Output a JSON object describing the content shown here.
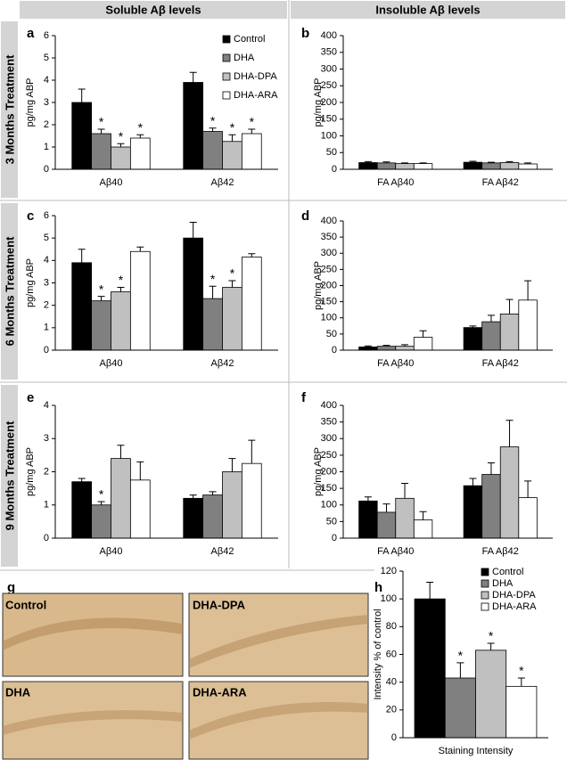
{
  "headers": [
    "Soluble Aβ levels",
    "Insoluble Aβ levels"
  ],
  "row_labels": [
    "3 Months Treatment",
    "6 Months Treatment",
    "9 Months Treatment"
  ],
  "figure_g": {
    "panel": "g",
    "images": [
      "Control",
      "DHA-DPA",
      "DHA",
      "DHA-ARA"
    ]
  },
  "chart_data": [
    {
      "type": "bar",
      "panel": "a",
      "ylabel": "pg/mg ABP",
      "categories": [
        "Aβ40",
        "Aβ42"
      ],
      "ylim": [
        0,
        6
      ],
      "yticks": [
        0,
        1,
        2,
        3,
        4,
        5,
        6
      ],
      "legend": "upper right",
      "series": [
        {
          "name": "Control",
          "color": "#000000",
          "values": [
            3.0,
            3.9
          ],
          "error": [
            0.6,
            0.45
          ]
        },
        {
          "name": "DHA",
          "color": "#808080",
          "values": [
            1.6,
            1.7
          ],
          "error": [
            0.2,
            0.15
          ],
          "significance": [
            "*",
            "*"
          ]
        },
        {
          "name": "DHA-DPA",
          "color": "#c0c0c0",
          "values": [
            1.0,
            1.25
          ],
          "error": [
            0.15,
            0.3
          ],
          "significance": [
            "*",
            "*"
          ]
        },
        {
          "name": "DHA-ARA",
          "color": "#ffffff",
          "values": [
            1.4,
            1.6
          ],
          "error": [
            0.15,
            0.2
          ],
          "significance": [
            "*",
            "*"
          ]
        }
      ]
    },
    {
      "type": "bar",
      "panel": "b",
      "ylabel": "pg/mg ABP",
      "categories": [
        "FA Aβ40",
        "FA Aβ42"
      ],
      "ylim": [
        0,
        400
      ],
      "yticks": [
        0,
        50,
        100,
        150,
        200,
        250,
        300,
        350,
        400
      ],
      "series": [
        {
          "color": "#000000",
          "values": [
            20,
            21
          ],
          "error": [
            3,
            3
          ]
        },
        {
          "color": "#808080",
          "values": [
            19,
            19
          ],
          "error": [
            3,
            2
          ]
        },
        {
          "color": "#c0c0c0",
          "values": [
            17,
            20
          ],
          "error": [
            2,
            3
          ]
        },
        {
          "color": "#ffffff",
          "values": [
            17,
            16
          ],
          "error": [
            2,
            3
          ]
        }
      ]
    },
    {
      "type": "bar",
      "panel": "c",
      "ylabel": "pg/mg ABP",
      "categories": [
        "Aβ40",
        "Aβ42"
      ],
      "ylim": [
        0,
        6
      ],
      "yticks": [
        0,
        1,
        2,
        3,
        4,
        5,
        6
      ],
      "series": [
        {
          "color": "#000000",
          "values": [
            3.9,
            5.0
          ],
          "error": [
            0.6,
            0.7
          ]
        },
        {
          "color": "#808080",
          "values": [
            2.2,
            2.3
          ],
          "error": [
            0.2,
            0.55
          ],
          "significance": [
            "*",
            "*"
          ]
        },
        {
          "color": "#c0c0c0",
          "values": [
            2.6,
            2.8
          ],
          "error": [
            0.2,
            0.3
          ],
          "significance": [
            "*",
            "*"
          ]
        },
        {
          "color": "#ffffff",
          "values": [
            4.4,
            4.15
          ],
          "error": [
            0.2,
            0.15
          ]
        }
      ]
    },
    {
      "type": "bar",
      "panel": "d",
      "ylabel": "pg/mg ABP",
      "categories": [
        "FA Aβ40",
        "FA Aβ42"
      ],
      "ylim": [
        0,
        400
      ],
      "yticks": [
        0,
        50,
        100,
        150,
        200,
        250,
        300,
        350,
        400
      ],
      "series": [
        {
          "color": "#000000",
          "values": [
            10,
            70
          ],
          "error": [
            3,
            5
          ]
        },
        {
          "color": "#808080",
          "values": [
            12,
            88
          ],
          "error": [
            3,
            20
          ]
        },
        {
          "color": "#c0c0c0",
          "values": [
            12,
            112
          ],
          "error": [
            5,
            45
          ]
        },
        {
          "color": "#ffffff",
          "values": [
            40,
            155
          ],
          "error": [
            20,
            60
          ]
        }
      ]
    },
    {
      "type": "bar",
      "panel": "e",
      "ylabel": "pg/mg ABP",
      "categories": [
        "Aβ40",
        "Aβ42"
      ],
      "ylim": [
        0,
        4
      ],
      "yticks": [
        0,
        1,
        2,
        3,
        4
      ],
      "series": [
        {
          "color": "#000000",
          "values": [
            1.7,
            1.2
          ],
          "error": [
            0.1,
            0.1
          ]
        },
        {
          "color": "#808080",
          "values": [
            1.0,
            1.3
          ],
          "error": [
            0.1,
            0.1
          ],
          "significance": [
            "*",
            null
          ]
        },
        {
          "color": "#c0c0c0",
          "values": [
            2.4,
            2.0
          ],
          "error": [
            0.4,
            0.4
          ]
        },
        {
          "color": "#ffffff",
          "values": [
            1.75,
            2.25
          ],
          "error": [
            0.55,
            0.7
          ]
        }
      ]
    },
    {
      "type": "bar",
      "panel": "f",
      "ylabel": "pg/mg ABP",
      "categories": [
        "FA Aβ40",
        "FA Aβ42"
      ],
      "ylim": [
        0,
        400
      ],
      "yticks": [
        0,
        50,
        100,
        150,
        200,
        250,
        300,
        350,
        400
      ],
      "series": [
        {
          "color": "#000000",
          "values": [
            112,
            158
          ],
          "error": [
            12,
            22
          ]
        },
        {
          "color": "#808080",
          "values": [
            78,
            192
          ],
          "error": [
            25,
            35
          ]
        },
        {
          "color": "#c0c0c0",
          "values": [
            120,
            275
          ],
          "error": [
            45,
            80
          ]
        },
        {
          "color": "#ffffff",
          "values": [
            55,
            122
          ],
          "error": [
            25,
            50
          ]
        }
      ]
    },
    {
      "type": "bar",
      "panel": "h",
      "ylabel": "Intensity % of control",
      "categories": [
        "Staining Intensity"
      ],
      "ylim": [
        0,
        120
      ],
      "yticks": [
        0,
        20,
        40,
        60,
        80,
        100,
        120
      ],
      "legend": "upper right",
      "series": [
        {
          "name": "Control",
          "color": "#000000",
          "values": [
            100
          ],
          "error": [
            12
          ]
        },
        {
          "name": "DHA",
          "color": "#808080",
          "values": [
            43
          ],
          "error": [
            11
          ],
          "significance": [
            "*"
          ]
        },
        {
          "name": "DHA-DPA",
          "color": "#c0c0c0",
          "values": [
            63
          ],
          "error": [
            5
          ],
          "significance": [
            "*"
          ]
        },
        {
          "name": "DHA-ARA",
          "color": "#ffffff",
          "values": [
            37
          ],
          "error": [
            6
          ],
          "significance": [
            "*"
          ]
        }
      ]
    }
  ]
}
